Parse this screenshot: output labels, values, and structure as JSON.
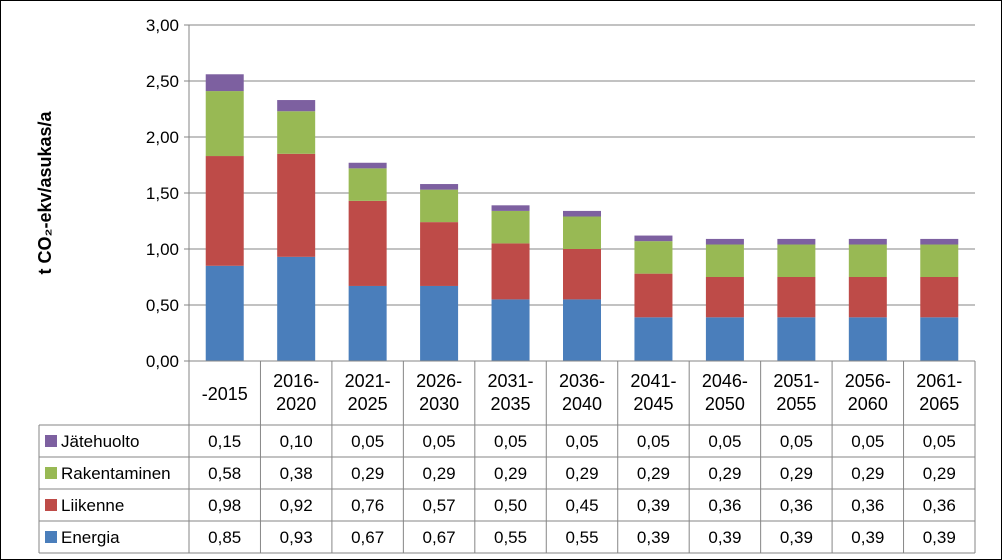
{
  "chart_data": {
    "type": "bar",
    "stacked": true,
    "ylabel": "t CO₂-ekv/asukas/a",
    "ylim": [
      0,
      3.0
    ],
    "ytick_labels": [
      "0,00",
      "0,50",
      "1,00",
      "1,50",
      "2,00",
      "2,50",
      "3,00"
    ],
    "yticks": [
      0,
      0.5,
      1.0,
      1.5,
      2.0,
      2.5,
      3.0
    ],
    "grid": true,
    "legend_placement": "data-table-left",
    "categories": [
      [
        "-2015"
      ],
      [
        "2016-",
        "2020"
      ],
      [
        "2021-",
        "2025"
      ],
      [
        "2026-",
        "2030"
      ],
      [
        "2031-",
        "2035"
      ],
      [
        "2036-",
        "2040"
      ],
      [
        "2041-",
        "2045"
      ],
      [
        "2046-",
        "2050"
      ],
      [
        "2051-",
        "2055"
      ],
      [
        "2056-",
        "2060"
      ],
      [
        "2061-",
        "2065"
      ]
    ],
    "series": [
      {
        "name": "Energia",
        "color": "#4a7ebb",
        "values": [
          0.85,
          0.93,
          0.67,
          0.67,
          0.55,
          0.55,
          0.39,
          0.39,
          0.39,
          0.39,
          0.39
        ],
        "labels": [
          "0,85",
          "0,93",
          "0,67",
          "0,67",
          "0,55",
          "0,55",
          "0,39",
          "0,39",
          "0,39",
          "0,39",
          "0,39"
        ]
      },
      {
        "name": "Liikenne",
        "color": "#be4b48",
        "values": [
          0.98,
          0.92,
          0.76,
          0.57,
          0.5,
          0.45,
          0.39,
          0.36,
          0.36,
          0.36,
          0.36
        ],
        "labels": [
          "0,98",
          "0,92",
          "0,76",
          "0,57",
          "0,50",
          "0,45",
          "0,39",
          "0,36",
          "0,36",
          "0,36",
          "0,36"
        ]
      },
      {
        "name": "Rakentaminen",
        "color": "#98b954",
        "values": [
          0.58,
          0.38,
          0.29,
          0.29,
          0.29,
          0.29,
          0.29,
          0.29,
          0.29,
          0.29,
          0.29
        ],
        "labels": [
          "0,58",
          "0,38",
          "0,29",
          "0,29",
          "0,29",
          "0,29",
          "0,29",
          "0,29",
          "0,29",
          "0,29",
          "0,29"
        ]
      },
      {
        "name": "Jätehuolto",
        "color": "#7d60a0",
        "values": [
          0.15,
          0.1,
          0.05,
          0.05,
          0.05,
          0.05,
          0.05,
          0.05,
          0.05,
          0.05,
          0.05
        ],
        "labels": [
          "0,15",
          "0,10",
          "0,05",
          "0,05",
          "0,05",
          "0,05",
          "0,05",
          "0,05",
          "0,05",
          "0,05",
          "0,05"
        ]
      }
    ]
  }
}
